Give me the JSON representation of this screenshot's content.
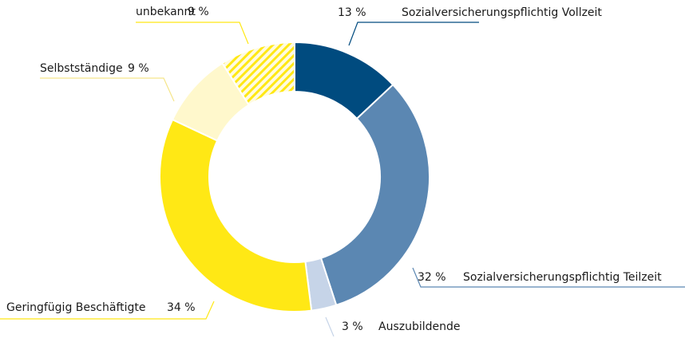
{
  "chart_data": {
    "type": "donut",
    "categories": [
      "Sozialversicherungspflichtig Vollzeit",
      "Sozialversicherungspflichtig Teilzeit",
      "Auszubildende",
      "Geringfügig Beschäftigte",
      "Selbstständige",
      "unbekannt"
    ],
    "values": [
      13,
      32,
      3,
      34,
      9,
      9
    ],
    "value_labels": [
      "13 %",
      "32 %",
      "3 %",
      "34 %",
      "9 %",
      "9 %"
    ],
    "colors": [
      "#004b7f",
      "#5b87b2",
      "#c6d4e8",
      "#ffe815",
      "#fff8cc",
      "#ffe815"
    ],
    "hatched": [
      false,
      false,
      false,
      false,
      false,
      true
    ]
  }
}
